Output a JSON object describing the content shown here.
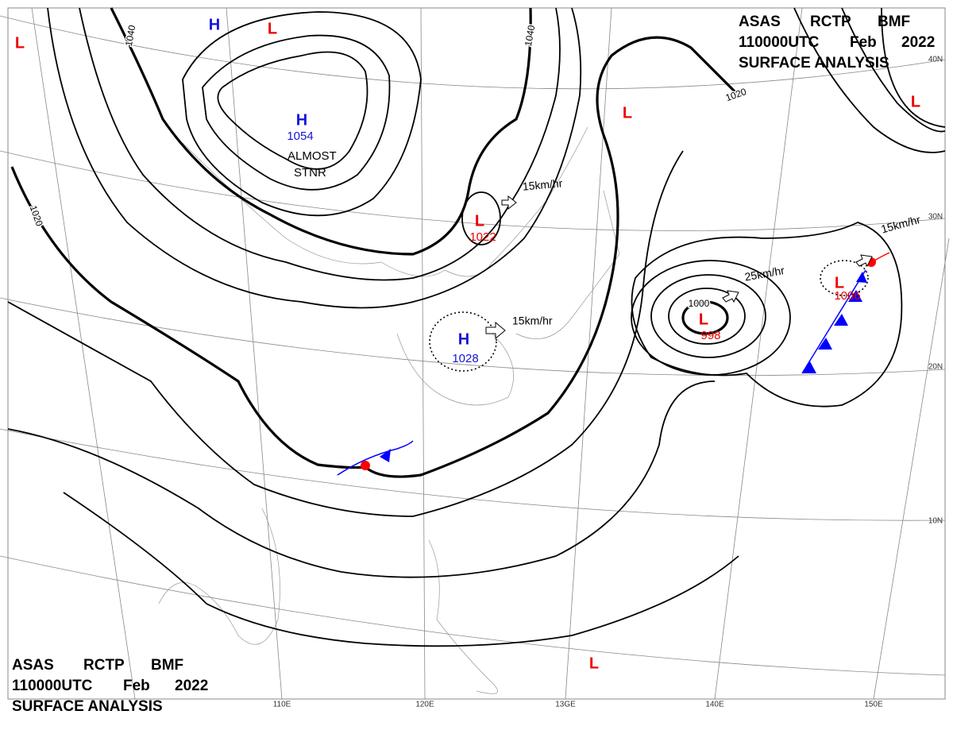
{
  "header": {
    "line1": [
      "ASAS",
      "RCTP",
      "BMF"
    ],
    "line2": [
      "110000UTC",
      "Feb",
      "2022"
    ],
    "line3": "SURFACE ANALYSIS"
  },
  "footer": {
    "line1": [
      "ASAS",
      "RCTP",
      "BMF"
    ],
    "line2": [
      "110000UTC",
      "Feb",
      "2022"
    ],
    "line3": "SURFACE ANALYSIS"
  },
  "centers": [
    {
      "type": "H"
    },
    {
      "type": "L"
    },
    {
      "type": "L"
    },
    {
      "type": "H",
      "value": "1054"
    },
    {
      "type": "L",
      "value": "1022"
    },
    {
      "type": "H",
      "value": "1028"
    },
    {
      "type": "L",
      "value": "998"
    },
    {
      "type": "L",
      "value": "1006"
    },
    {
      "type": "L"
    },
    {
      "type": "L"
    },
    {
      "type": "L"
    }
  ],
  "isobar_labels": [
    "1040",
    "1040",
    "1020",
    "1020",
    "1000"
  ],
  "motion_labels": [
    "15km/hr",
    "15km/hr",
    "25km/hr",
    "15km/hr"
  ],
  "annotations": [
    "ALMOST",
    "STNR"
  ],
  "longitude_labels": [
    "110E",
    "120E",
    "13GE",
    "140E",
    "150E"
  ],
  "latitude_labels": [
    "40N",
    "30N",
    "20N",
    "10N"
  ]
}
